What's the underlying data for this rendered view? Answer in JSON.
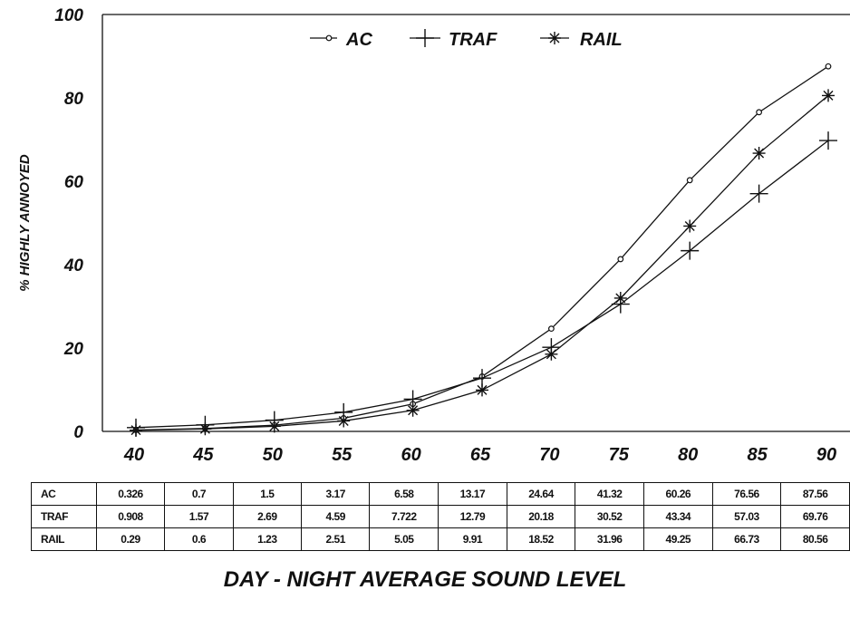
{
  "chart_data": {
    "type": "line",
    "title": "",
    "xlabel": "DAY - NIGHT AVERAGE SOUND LEVEL",
    "ylabel": "% HIGHLY ANNOYED",
    "x": [
      40,
      45,
      50,
      55,
      60,
      65,
      70,
      75,
      80,
      85,
      90
    ],
    "x_tick_labels": [
      "40",
      "45",
      "50",
      "55",
      "60",
      "65",
      "70",
      "75",
      "80",
      "85",
      "90"
    ],
    "y_tick_labels": [
      "0",
      "20",
      "40",
      "60",
      "80",
      "100"
    ],
    "ylim": [
      0,
      100
    ],
    "legend_position": "top-center",
    "grid": false,
    "series": [
      {
        "name": "AC",
        "marker": "circle",
        "values": [
          0.326,
          0.7,
          1.5,
          3.17,
          6.58,
          13.17,
          24.64,
          41.32,
          60.26,
          76.56,
          87.56
        ]
      },
      {
        "name": "TRAF",
        "marker": "plus",
        "values": [
          0.908,
          1.57,
          2.69,
          4.59,
          7.722,
          12.79,
          20.18,
          30.52,
          43.34,
          57.03,
          69.76
        ]
      },
      {
        "name": "RAIL",
        "marker": "asterisk",
        "values": [
          0.29,
          0.6,
          1.23,
          2.51,
          5.05,
          9.91,
          18.52,
          31.96,
          49.25,
          66.73,
          80.56
        ]
      }
    ]
  },
  "table": {
    "rows": [
      {
        "label": "AC",
        "cells": [
          "0.326",
          "0.7",
          "1.5",
          "3.17",
          "6.58",
          "13.17",
          "24.64",
          "41.32",
          "60.26",
          "76.56",
          "87.56"
        ]
      },
      {
        "label": "TRAF",
        "cells": [
          "0.908",
          "1.57",
          "2.69",
          "4.59",
          "7.722",
          "12.79",
          "20.18",
          "30.52",
          "43.34",
          "57.03",
          "69.76"
        ]
      },
      {
        "label": "RAIL",
        "cells": [
          "0.29",
          "0.6",
          "1.23",
          "2.51",
          "5.05",
          "9.91",
          "18.52",
          "31.96",
          "49.25",
          "66.73",
          "80.56"
        ]
      }
    ]
  },
  "colors": {
    "ink": "#111111",
    "background": "#ffffff"
  }
}
